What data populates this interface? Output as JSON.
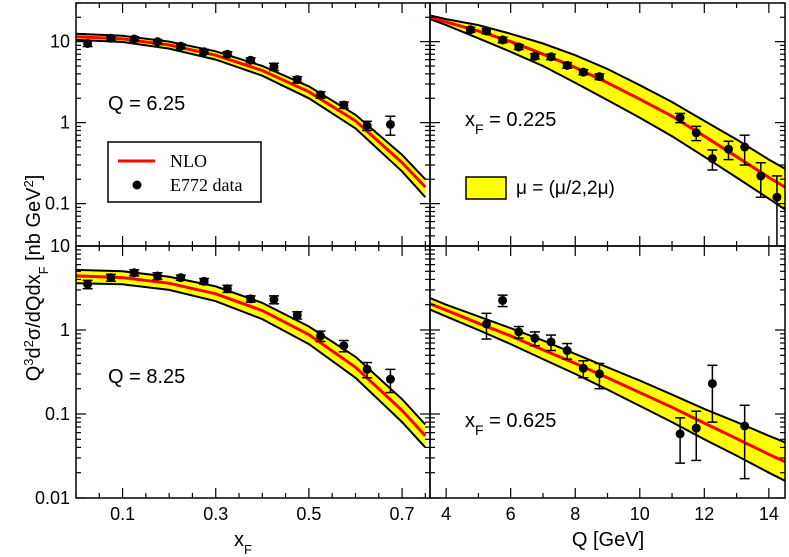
{
  "colors": {
    "band_fill": "#ffff00",
    "band_edge": "#000000",
    "nlo_line": "#ff0000",
    "data_point": "#000000"
  },
  "figure": {
    "ylabel_parts": [
      "Q",
      "3",
      "d",
      "2",
      "σ/dQdx",
      "F",
      " [nb GeV",
      "2",
      "]"
    ],
    "xlabel_left_parts": [
      "x",
      "F"
    ],
    "xlabel_right": "Q [GeV]"
  },
  "legend": {
    "nlo_label": "NLO",
    "data_label": "E772 data",
    "band_label": "μ = (μ/2,2μ)"
  },
  "chart_data": [
    {
      "id": "top-left",
      "type": "line",
      "annotation_parts": [
        "Q = 6.25"
      ],
      "x_axis": "xF",
      "y_scale": "log",
      "xlim": [
        0.0,
        0.76
      ],
      "ylim": [
        0.03,
        30
      ],
      "xtick_labels": [],
      "ytick_values": [
        0.1,
        1,
        10
      ],
      "ytick_labels": [
        "0.1",
        "1",
        "10"
      ],
      "band_x": [
        0.0,
        0.1,
        0.2,
        0.3,
        0.4,
        0.5,
        0.6,
        0.7,
        0.75
      ],
      "band_upper": [
        12.5,
        11.8,
        10.0,
        7.6,
        5.0,
        2.8,
        1.25,
        0.4,
        0.2
      ],
      "band_lower": [
        10.5,
        9.9,
        8.2,
        6.0,
        3.8,
        2.0,
        0.85,
        0.25,
        0.12
      ],
      "nlo": [
        11.5,
        10.8,
        9.1,
        6.8,
        4.4,
        2.4,
        1.05,
        0.32,
        0.16
      ],
      "points": [
        {
          "x": 0.025,
          "y": 9.5,
          "err": 0.8
        },
        {
          "x": 0.075,
          "y": 11.0,
          "err": 0.7
        },
        {
          "x": 0.125,
          "y": 10.8,
          "err": 0.7
        },
        {
          "x": 0.175,
          "y": 10.0,
          "err": 0.6
        },
        {
          "x": 0.225,
          "y": 8.8,
          "err": 0.6
        },
        {
          "x": 0.275,
          "y": 7.5,
          "err": 0.5
        },
        {
          "x": 0.325,
          "y": 7.0,
          "err": 0.5
        },
        {
          "x": 0.375,
          "y": 5.9,
          "err": 0.4
        },
        {
          "x": 0.425,
          "y": 4.9,
          "err": 0.5
        },
        {
          "x": 0.475,
          "y": 3.4,
          "err": 0.3
        },
        {
          "x": 0.525,
          "y": 2.2,
          "err": 0.2
        },
        {
          "x": 0.575,
          "y": 1.65,
          "err": 0.15
        },
        {
          "x": 0.625,
          "y": 0.92,
          "err": 0.12
        },
        {
          "x": 0.675,
          "y": 0.95,
          "err": 0.25
        }
      ]
    },
    {
      "id": "top-right",
      "type": "line",
      "annotation_parts": [
        "x",
        "F",
        " = 0.225"
      ],
      "x_axis": "Q",
      "y_scale": "log",
      "xlim": [
        3.5,
        14.5
      ],
      "ylim": [
        0.03,
        30
      ],
      "xtick_labels": [],
      "ytick_values": [],
      "ytick_labels": [],
      "band_x": [
        3.5,
        4,
        5,
        6,
        7,
        8,
        9,
        10,
        11,
        12,
        13,
        14,
        14.5
      ],
      "band_upper": [
        21,
        19,
        16,
        12.5,
        9.5,
        6.8,
        4.6,
        2.9,
        1.8,
        1.05,
        0.62,
        0.35,
        0.27
      ],
      "band_lower": [
        19,
        16,
        11,
        7.5,
        5.0,
        3.1,
        1.9,
        1.15,
        0.68,
        0.38,
        0.21,
        0.115,
        0.085
      ],
      "nlo": [
        20,
        17.5,
        13.5,
        10.0,
        7.0,
        4.8,
        3.1,
        1.95,
        1.2,
        0.68,
        0.38,
        0.21,
        0.16
      ],
      "points": [
        {
          "x": 4.75,
          "y": 14.0,
          "err": 1.0
        },
        {
          "x": 5.25,
          "y": 13.5,
          "err": 1.0
        },
        {
          "x": 5.75,
          "y": 10.5,
          "err": 0.8
        },
        {
          "x": 6.25,
          "y": 8.6,
          "err": 0.6
        },
        {
          "x": 6.75,
          "y": 6.6,
          "err": 0.5
        },
        {
          "x": 7.25,
          "y": 6.5,
          "err": 0.5
        },
        {
          "x": 7.75,
          "y": 5.1,
          "err": 0.4
        },
        {
          "x": 8.25,
          "y": 4.2,
          "err": 0.3
        },
        {
          "x": 8.75,
          "y": 3.7,
          "err": 0.3
        },
        {
          "x": 11.25,
          "y": 1.15,
          "err": 0.15
        },
        {
          "x": 11.75,
          "y": 0.75,
          "err": 0.15
        },
        {
          "x": 12.25,
          "y": 0.36,
          "err": 0.1
        },
        {
          "x": 12.75,
          "y": 0.47,
          "err": 0.12
        },
        {
          "x": 13.25,
          "y": 0.5,
          "err": 0.2
        },
        {
          "x": 13.75,
          "y": 0.22,
          "err": 0.1
        },
        {
          "x": 14.25,
          "y": 0.12,
          "err": 0.1
        }
      ]
    },
    {
      "id": "bottom-left",
      "type": "line",
      "annotation_parts": [
        "Q = 8.25"
      ],
      "x_axis": "xF",
      "y_scale": "log",
      "xlim": [
        0.0,
        0.76
      ],
      "ylim": [
        0.01,
        10
      ],
      "xtick_values": [
        0.1,
        0.3,
        0.5,
        0.7
      ],
      "xtick_labels": [
        "0.1",
        "0.3",
        "0.5",
        "0.7"
      ],
      "ytick_values": [
        0.01,
        0.1,
        1,
        10
      ],
      "ytick_labels": [
        "0.01",
        "0.1",
        "1",
        "10"
      ],
      "band_x": [
        0.0,
        0.1,
        0.2,
        0.3,
        0.4,
        0.5,
        0.6,
        0.7,
        0.75
      ],
      "band_upper": [
        5.2,
        5.0,
        4.3,
        3.3,
        2.1,
        1.1,
        0.48,
        0.15,
        0.075
      ],
      "band_lower": [
        3.6,
        3.5,
        3.0,
        2.2,
        1.35,
        0.68,
        0.27,
        0.08,
        0.04
      ],
      "nlo": [
        4.4,
        4.2,
        3.6,
        2.7,
        1.7,
        0.88,
        0.36,
        0.11,
        0.055
      ],
      "points": [
        {
          "x": 0.025,
          "y": 3.5,
          "err": 0.4
        },
        {
          "x": 0.075,
          "y": 4.2,
          "err": 0.4
        },
        {
          "x": 0.125,
          "y": 4.8,
          "err": 0.4
        },
        {
          "x": 0.175,
          "y": 4.4,
          "err": 0.4
        },
        {
          "x": 0.225,
          "y": 4.2,
          "err": 0.3
        },
        {
          "x": 0.275,
          "y": 3.8,
          "err": 0.3
        },
        {
          "x": 0.325,
          "y": 3.1,
          "err": 0.3
        },
        {
          "x": 0.375,
          "y": 2.35,
          "err": 0.2
        },
        {
          "x": 0.425,
          "y": 2.3,
          "err": 0.25
        },
        {
          "x": 0.475,
          "y": 1.5,
          "err": 0.15
        },
        {
          "x": 0.525,
          "y": 0.85,
          "err": 0.12
        },
        {
          "x": 0.575,
          "y": 0.65,
          "err": 0.1
        },
        {
          "x": 0.625,
          "y": 0.34,
          "err": 0.07
        },
        {
          "x": 0.675,
          "y": 0.26,
          "err": 0.08
        }
      ]
    },
    {
      "id": "bottom-right",
      "type": "line",
      "annotation_parts": [
        "x",
        "F",
        " = 0.625"
      ],
      "x_axis": "Q",
      "y_scale": "log",
      "xlim": [
        3.5,
        14.5
      ],
      "ylim": [
        0.01,
        10
      ],
      "xtick_values": [
        4,
        6,
        8,
        10,
        12,
        14
      ],
      "xtick_labels": [
        "4",
        "6",
        "8",
        "10",
        "12",
        "14"
      ],
      "ytick_values": [],
      "ytick_labels": [],
      "band_x": [
        3.5,
        4,
        5,
        6,
        7,
        8,
        9,
        10,
        11,
        12,
        13,
        14,
        14.5
      ],
      "band_upper": [
        2.4,
        2.0,
        1.45,
        1.05,
        0.75,
        0.52,
        0.36,
        0.25,
        0.17,
        0.115,
        0.08,
        0.055,
        0.046
      ],
      "band_lower": [
        1.75,
        1.45,
        1.0,
        0.68,
        0.45,
        0.3,
        0.195,
        0.125,
        0.08,
        0.05,
        0.032,
        0.02,
        0.016
      ],
      "nlo": [
        2.05,
        1.72,
        1.2,
        0.85,
        0.58,
        0.4,
        0.27,
        0.18,
        0.12,
        0.078,
        0.051,
        0.033,
        0.027
      ],
      "points": [
        {
          "x": 5.25,
          "y": 1.18,
          "err": 0.4
        },
        {
          "x": 5.75,
          "y": 2.25,
          "err": 0.35
        },
        {
          "x": 6.25,
          "y": 0.95,
          "err": 0.15
        },
        {
          "x": 6.75,
          "y": 0.8,
          "err": 0.15
        },
        {
          "x": 7.25,
          "y": 0.72,
          "err": 0.15
        },
        {
          "x": 7.75,
          "y": 0.57,
          "err": 0.12
        },
        {
          "x": 8.25,
          "y": 0.35,
          "err": 0.08
        },
        {
          "x": 8.75,
          "y": 0.3,
          "err": 0.1
        },
        {
          "x": 11.25,
          "y": 0.058,
          "err": 0.032
        },
        {
          "x": 11.75,
          "y": 0.068,
          "err": 0.04
        },
        {
          "x": 12.25,
          "y": 0.23,
          "err": 0.15
        },
        {
          "x": 13.25,
          "y": 0.072,
          "err": 0.055
        }
      ]
    }
  ]
}
